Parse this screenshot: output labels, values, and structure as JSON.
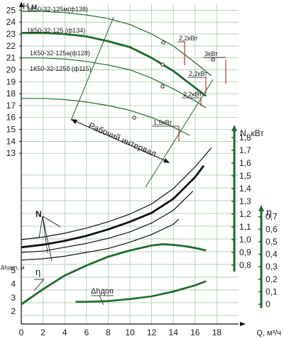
{
  "chart_data": {
    "type": "line",
    "axes": {
      "x": {
        "label": "Q, м³/ч",
        "range": [
          0,
          20
        ],
        "ticks": [
          0,
          2,
          4,
          6,
          8,
          10,
          12,
          14,
          16,
          18
        ]
      },
      "head": {
        "label": "H,м",
        "range": [
          12,
          25.5
        ],
        "ticks": [
          13,
          14,
          15,
          16,
          17,
          18,
          19,
          20,
          21,
          22,
          23,
          24,
          25
        ]
      },
      "power": {
        "label": "N, кВт",
        "range": [
          0.75,
          1.85
        ],
        "ticks": [
          0.8,
          0.9,
          1.0,
          1.1,
          1.2,
          1.3,
          1.4,
          1.5,
          1.6,
          1.7,
          1.8
        ]
      },
      "efficiency": {
        "label": "η",
        "range": [
          -0.05,
          0.8
        ],
        "ticks": [
          0,
          0.1,
          0.2,
          0.3,
          0.4,
          0.5,
          0.6,
          0.7
        ]
      },
      "npsh": {
        "label": "Δhдоп, м",
        "range": [
          1.7,
          6.0
        ],
        "ticks": [
          2,
          3,
          4,
          5
        ]
      }
    },
    "head_curves": [
      {
        "name": "1К50-32-125м(ф138)",
        "x": [
          0,
          2,
          4,
          6,
          8,
          10,
          12,
          14,
          16,
          17.5
        ],
        "y": [
          24.9,
          24.9,
          24.8,
          24.6,
          24.3,
          23.8,
          23.0,
          22.0,
          20.6,
          19.5
        ]
      },
      {
        "name": "1К50-32-125 (ф134)",
        "x": [
          0,
          2,
          4,
          6,
          8,
          10,
          12,
          14,
          16,
          17
        ],
        "y": [
          23.1,
          23.1,
          23.0,
          22.8,
          22.4,
          21.9,
          21.0,
          19.9,
          18.5,
          17.8
        ]
      },
      {
        "name": "1К50-32-125а(ф128)",
        "x": [
          0,
          2,
          4,
          6,
          8,
          10,
          12,
          14,
          16,
          17
        ],
        "y": [
          21.0,
          21.0,
          20.9,
          20.7,
          20.4,
          20.0,
          19.3,
          18.4,
          17.4,
          16.8
        ]
      },
      {
        "name": "1К50-32-125б (ф115)",
        "x": [
          0,
          2,
          4,
          6,
          8,
          10,
          12,
          14,
          15.5
        ],
        "y": [
          17.6,
          17.6,
          17.5,
          17.3,
          17.0,
          16.6,
          16.0,
          15.2,
          14.5
        ]
      }
    ],
    "power_curves": [
      {
        "x": [
          0,
          2,
          4,
          6,
          8,
          10,
          12,
          14,
          16,
          17.5
        ],
        "y": [
          1.0,
          1.02,
          1.05,
          1.09,
          1.14,
          1.2,
          1.28,
          1.4,
          1.57,
          1.72
        ]
      },
      {
        "x": [
          0,
          2,
          4,
          6,
          8,
          10,
          12,
          14,
          16,
          16.8
        ],
        "y": [
          0.94,
          0.96,
          0.99,
          1.03,
          1.08,
          1.14,
          1.21,
          1.32,
          1.49,
          1.58
        ]
      },
      {
        "x": [
          0,
          2,
          4,
          6,
          8,
          10,
          12,
          14,
          15.8
        ],
        "y": [
          0.9,
          0.91,
          0.94,
          0.97,
          1.01,
          1.06,
          1.13,
          1.23,
          1.38
        ]
      },
      {
        "x": [
          0,
          2,
          4,
          6,
          8,
          10,
          12,
          14,
          14.5
        ],
        "y": [
          0.84,
          0.85,
          0.87,
          0.9,
          0.93,
          0.98,
          1.04,
          1.12,
          1.16
        ]
      }
    ],
    "efficiency_curve": {
      "x": [
        0,
        2,
        4,
        6,
        8,
        10,
        12,
        13,
        14,
        15,
        16,
        17
      ],
      "y": [
        0.0,
        0.12,
        0.23,
        0.31,
        0.38,
        0.43,
        0.47,
        0.48,
        0.475,
        0.465,
        0.45,
        0.43
      ]
    },
    "npsh_curve": {
      "x": [
        5,
        6,
        8,
        10,
        12,
        14,
        16,
        17
      ],
      "y": [
        2.7,
        2.7,
        2.75,
        2.9,
        3.1,
        3.45,
        3.9,
        4.2
      ]
    },
    "operating_range_label": "Рабочий интервал",
    "motor_power_labels": [
      "2,2кВт",
      "3кВт",
      "2,2кВт",
      "2,2кВт",
      "1,5кВт"
    ],
    "power_marker_label": "N",
    "efficiency_marker_label": "η",
    "npsh_marker_label": "Δhдоп"
  }
}
